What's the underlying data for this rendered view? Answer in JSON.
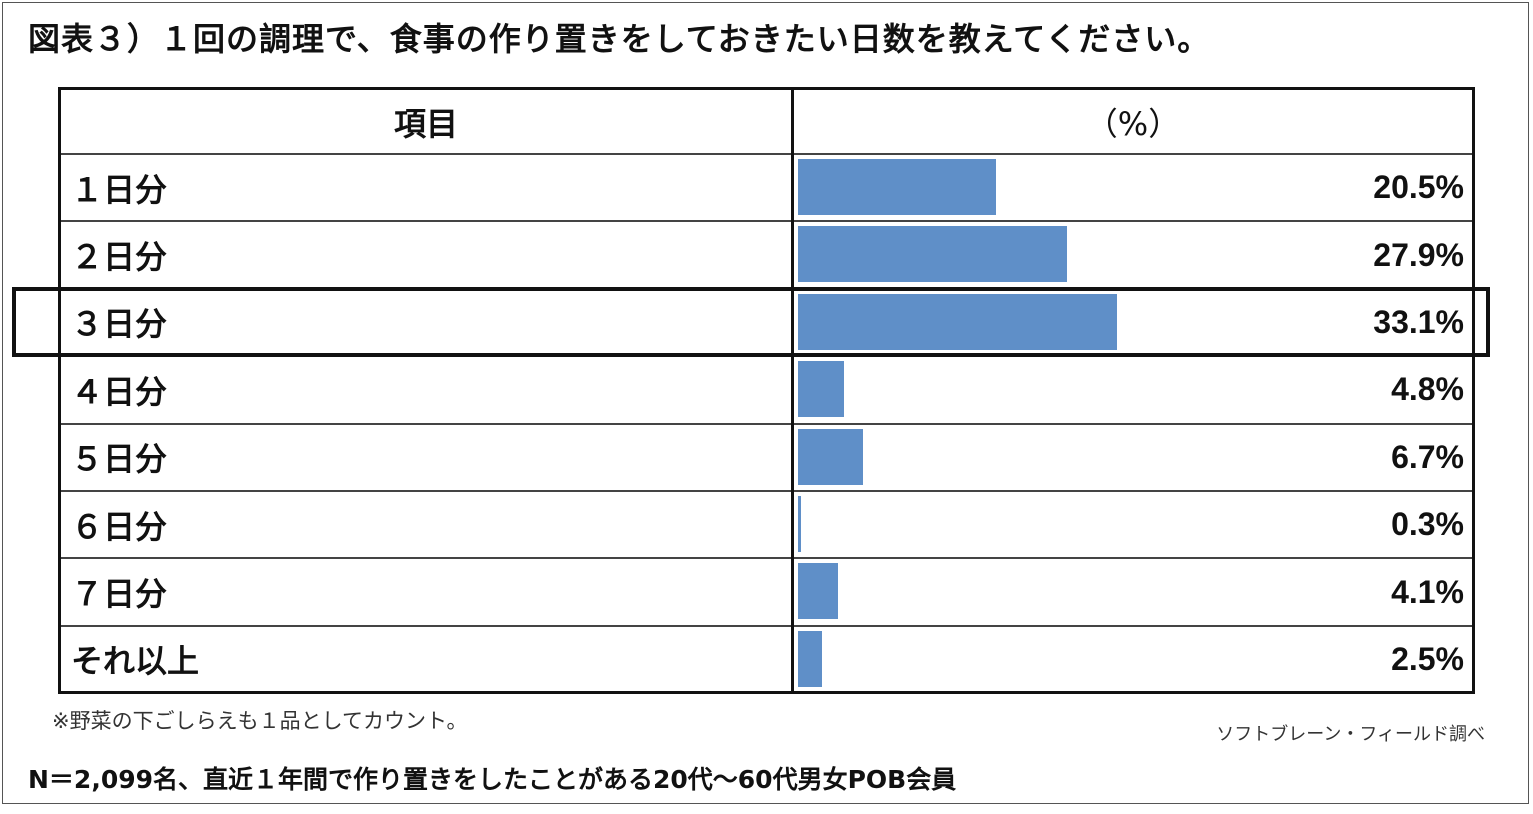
{
  "title": "図表３）１回の調理で、食事の作り置きをしておきたい日数を教えてください。",
  "table": {
    "header_item": "項目",
    "header_pct": "（%）"
  },
  "chart_data": {
    "type": "bar",
    "orientation": "horizontal",
    "title": "図表３）１回の調理で、食事の作り置きをしておきたい日数を教えてください。",
    "categories": [
      "１日分",
      "２日分",
      "３日分",
      "４日分",
      "５日分",
      "６日分",
      "７日分",
      "それ以上"
    ],
    "values": [
      20.5,
      27.9,
      33.1,
      4.8,
      6.7,
      0.3,
      4.1,
      2.5
    ],
    "value_labels": [
      "20.5%",
      "27.9%",
      "33.1%",
      "4.8%",
      "6.7%",
      "0.3%",
      "4.1%",
      "2.5%"
    ],
    "xlim": [
      0,
      100
    ],
    "unit": "%",
    "bar_color": "#5f8fc8",
    "highlighted_category": "３日分"
  },
  "note": "※野菜の下ごしらえも１品としてカウント。",
  "source": "ソフトブレーン・フィールド調べ",
  "footer": "N＝2,099名、直近１年間で作り置きをしたことがある20代～60代男女POB会員"
}
